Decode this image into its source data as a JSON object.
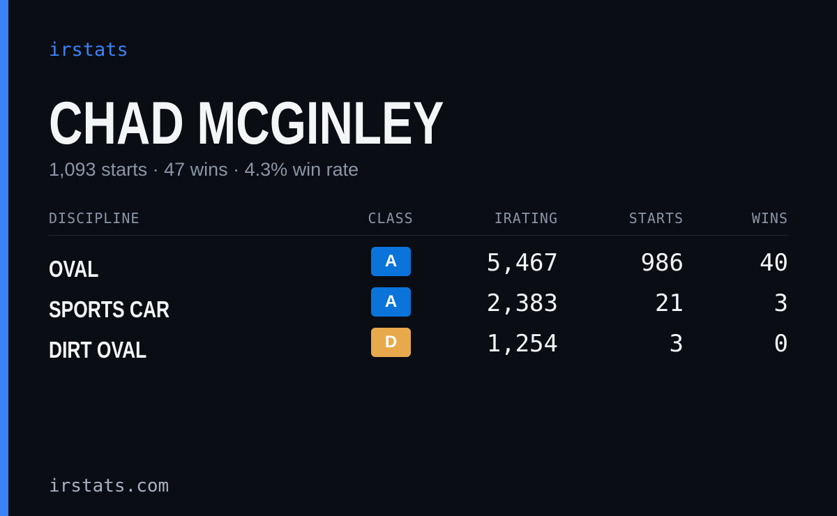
{
  "brand": "irstats",
  "profile": {
    "name": "CHAD MCGINLEY",
    "summary": "1,093 starts · 47 wins · 4.3% win rate"
  },
  "table": {
    "headers": [
      "DISCIPLINE",
      "CLASS",
      "IRATING",
      "STARTS",
      "WINS"
    ],
    "rows": [
      [
        "OVAL",
        "A",
        "5,467",
        "986",
        "40"
      ],
      [
        "SPORTS CAR",
        "A",
        "2,383",
        "21",
        "3"
      ],
      [
        "DIRT OVAL",
        "D",
        "1,254",
        "3",
        "0"
      ]
    ]
  },
  "footer": "irstats.com"
}
